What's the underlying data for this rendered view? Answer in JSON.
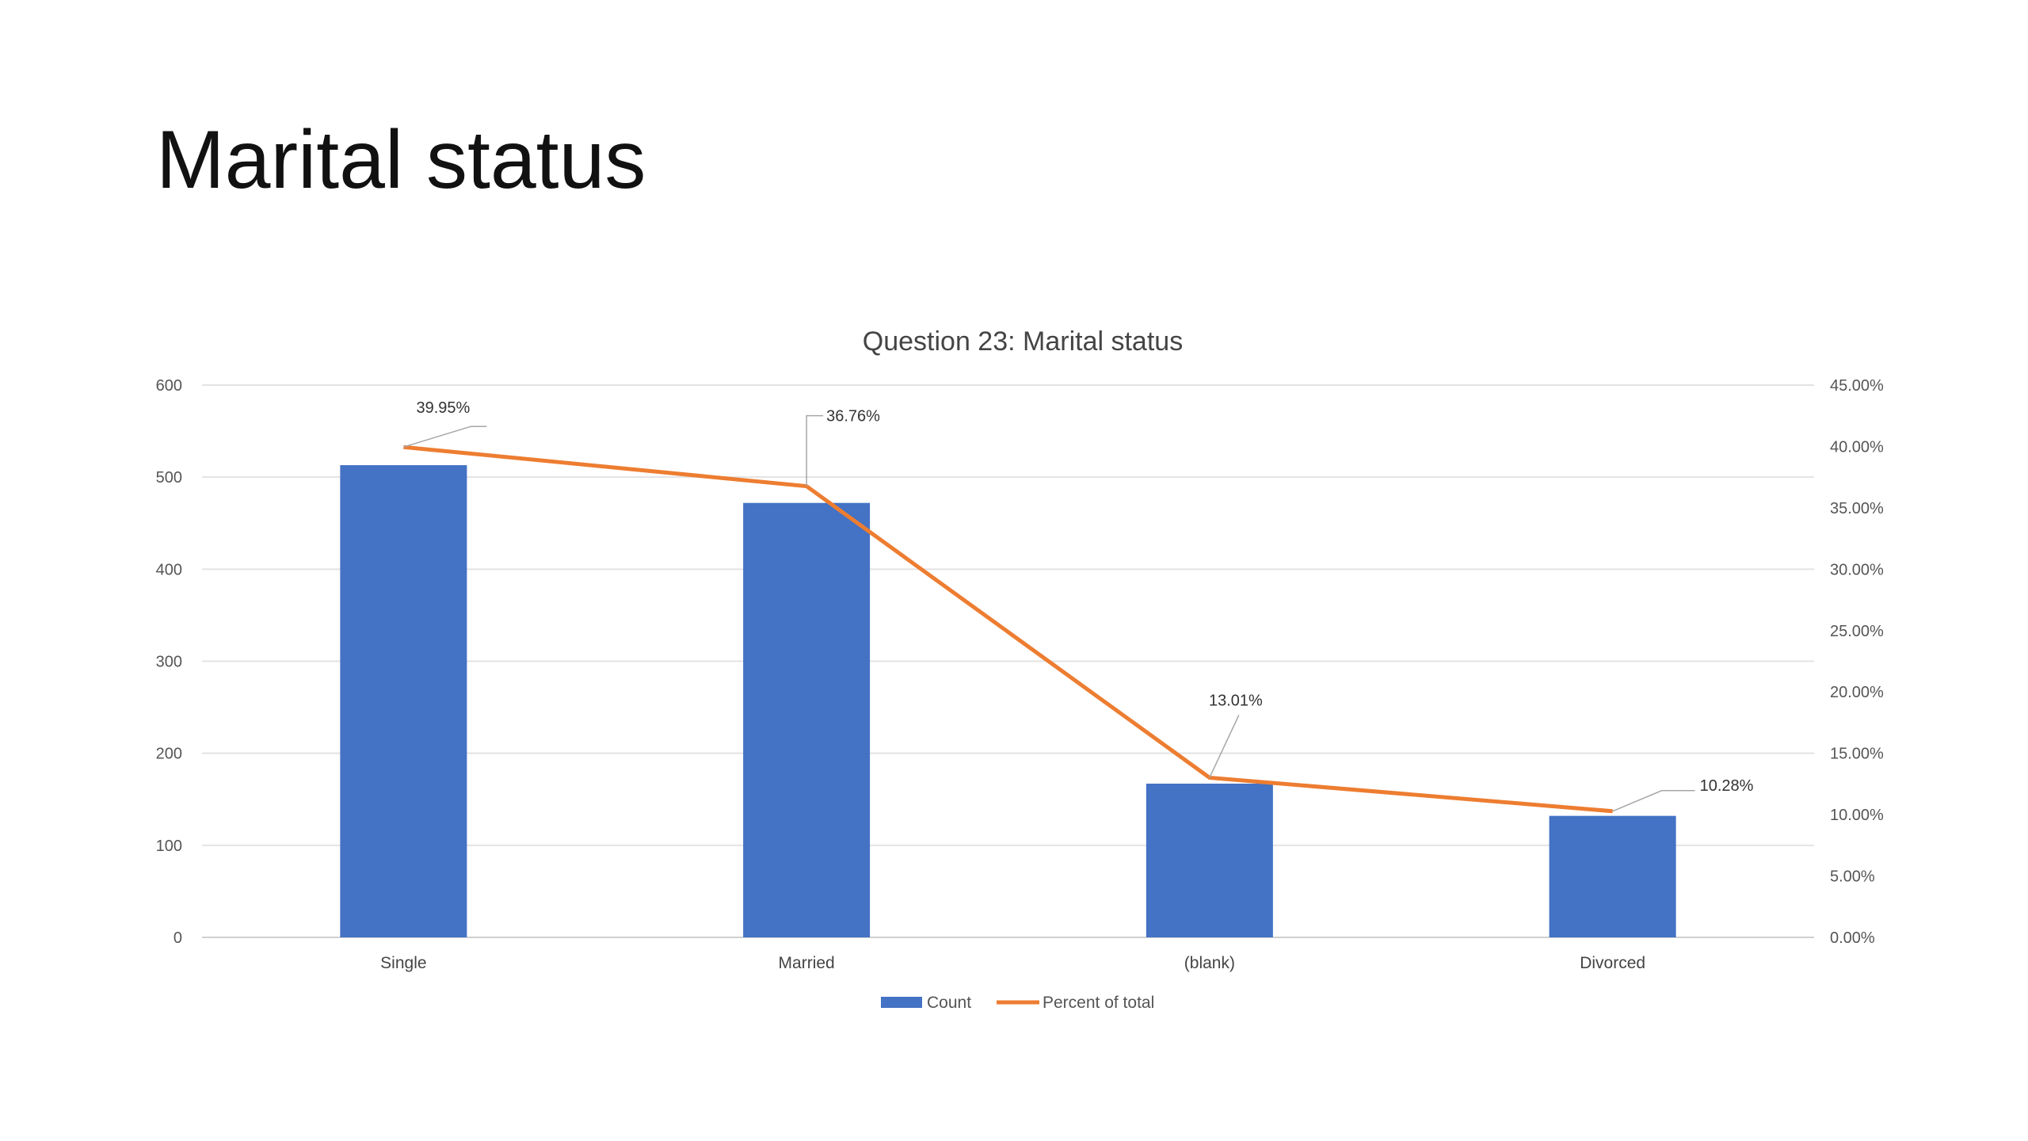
{
  "slide": {
    "title": "Marital status"
  },
  "chart_data": {
    "type": "bar",
    "title": "Question 23: Marital status",
    "categories": [
      "Single",
      "Married",
      "(blank)",
      "Divorced"
    ],
    "series": [
      {
        "name": "Count",
        "type": "bar",
        "axis": "left",
        "color": "#4472C4",
        "values": [
          513,
          472,
          167,
          132
        ]
      },
      {
        "name": "Percent of total",
        "type": "line",
        "axis": "right",
        "color": "#ED7D31",
        "values": [
          39.95,
          36.76,
          13.01,
          10.28
        ],
        "labels": [
          "39.95%",
          "36.76%",
          "13.01%",
          "10.28%"
        ]
      }
    ],
    "left_axis": {
      "ylim": [
        0,
        600
      ],
      "ticks": [
        "0",
        "100",
        "200",
        "300",
        "400",
        "500",
        "600"
      ]
    },
    "right_axis": {
      "ylim": [
        0,
        45
      ],
      "ticks": [
        "0.00%",
        "5.00%",
        "10.00%",
        "15.00%",
        "20.00%",
        "25.00%",
        "30.00%",
        "35.00%",
        "40.00%",
        "45.00%"
      ]
    },
    "grid": true,
    "legend_position": "bottom"
  }
}
